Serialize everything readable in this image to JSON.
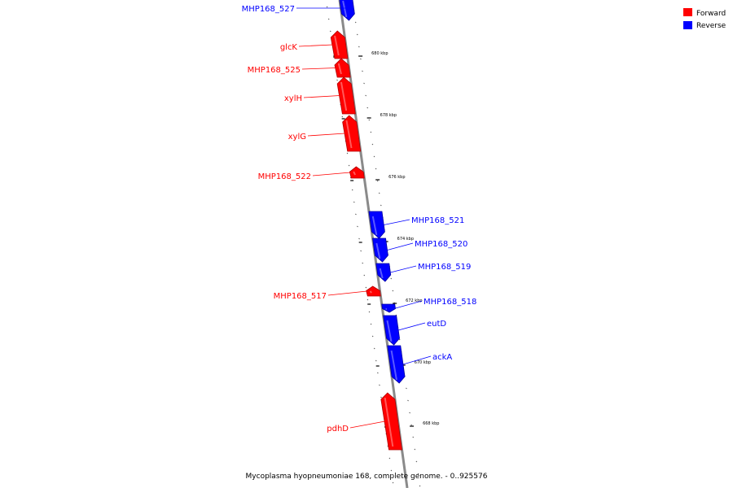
{
  "legend": {
    "forward_label": "Forward",
    "reverse_label": "Reverse",
    "forward_color": "#ff0000",
    "reverse_color": "#0000ff"
  },
  "caption": "Mycoplasma hyopneumoniae 168, complete genome. - 0..925576",
  "kbp_ticks": [
    "680 kbp",
    "678 kbp",
    "676 kbp",
    "674 kbp",
    "672 kbp",
    "670 kbp",
    "668 kbp"
  ],
  "genes": [
    {
      "name": "MHP168_527",
      "strand": "reverse"
    },
    {
      "name": "glcK",
      "strand": "forward"
    },
    {
      "name": "MHP168_525",
      "strand": "forward"
    },
    {
      "name": "xylH",
      "strand": "forward"
    },
    {
      "name": "xylG",
      "strand": "forward"
    },
    {
      "name": "MHP168_522",
      "strand": "forward"
    },
    {
      "name": "MHP168_521",
      "strand": "reverse"
    },
    {
      "name": "MHP168_520",
      "strand": "reverse"
    },
    {
      "name": "MHP168_519",
      "strand": "reverse"
    },
    {
      "name": "MHP168_517",
      "strand": "forward"
    },
    {
      "name": "MHP168_518",
      "strand": "reverse"
    },
    {
      "name": "eutD",
      "strand": "reverse"
    },
    {
      "name": "ackA",
      "strand": "reverse"
    },
    {
      "name": "pdhD",
      "strand": "forward"
    }
  ]
}
